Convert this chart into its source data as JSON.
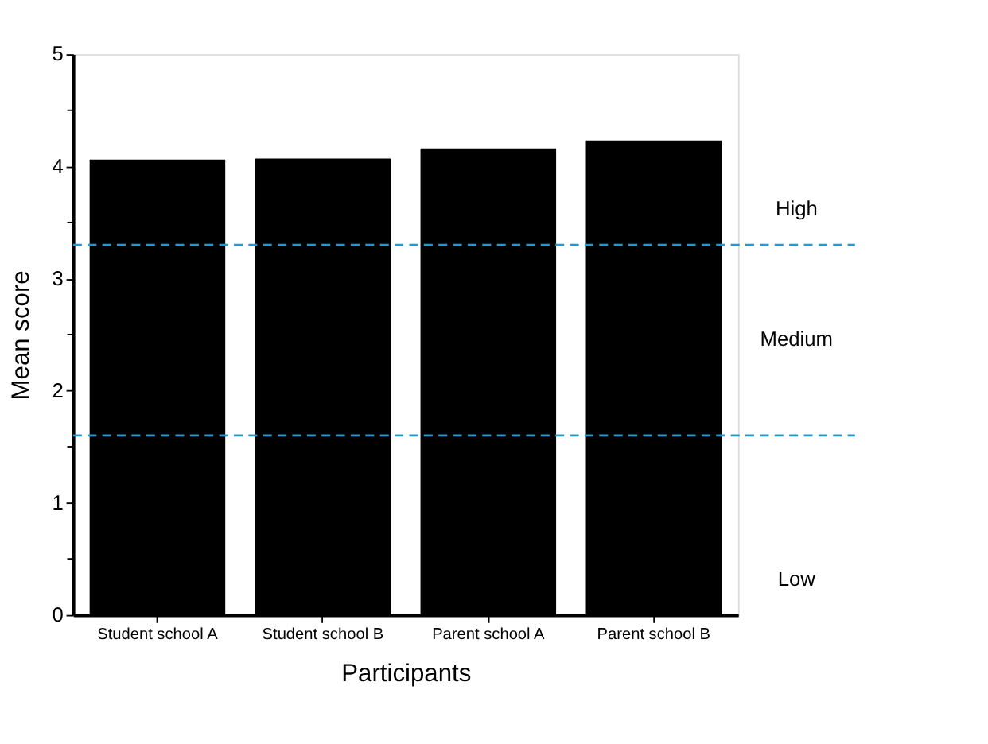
{
  "chart_data": {
    "type": "bar",
    "xlabel": "Participants",
    "ylabel": "Mean score",
    "categories": [
      "Student school A",
      "Student school B",
      "Parent school A",
      "Parent school B"
    ],
    "values": [
      4.06,
      4.07,
      4.16,
      4.23
    ],
    "color": "#000000",
    "ylim": [
      0,
      5
    ],
    "yticks": [
      0,
      {
        "value": 0.5,
        "label": null
      },
      1,
      {
        "value": 1.5,
        "label": null
      },
      2,
      {
        "value": 2.5,
        "label": null
      },
      3,
      {
        "value": 3.5,
        "label": null
      },
      4,
      {
        "value": 4.5,
        "label": null
      },
      5
    ],
    "ref_lines": [
      {
        "axis": "y",
        "value": 3.3,
        "label": null,
        "color": "#1f9ad6",
        "line_style": "dashed"
      },
      {
        "axis": "y",
        "value": 1.6,
        "label": null,
        "color": "#1f9ad6",
        "line_style": "dashed"
      }
    ],
    "annotations": [
      "High",
      "Medium",
      "Low"
    ],
    "grid": false
  }
}
